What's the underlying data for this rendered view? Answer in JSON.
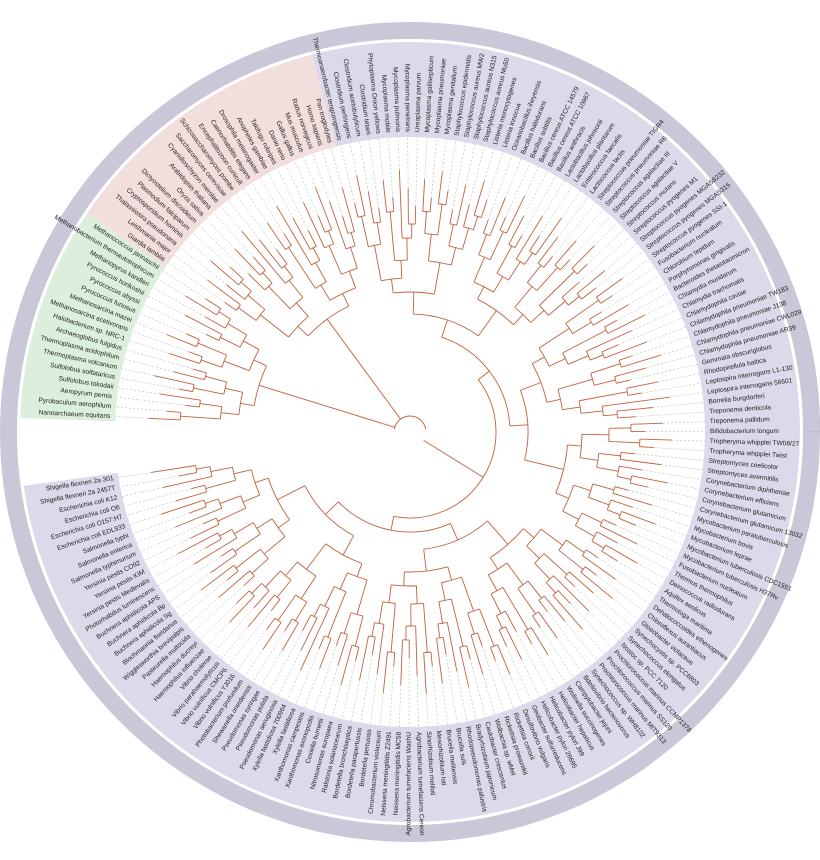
{
  "leaves": {
    "archaea": [
      "Nanoarchaeum equitans",
      "Pyrobaculum aerophilum",
      "Aeropyrum pernix",
      "Sulfolobus tokodaii",
      "Sulfolobus solfataricus",
      "Thermoplasma volcanium",
      "Thermoplasma acidophilum",
      "Archaeoglobus fulgidus",
      "Halobacterium sp. NRC-1",
      "Methanosarcina acetivorans",
      "Methanosarcina mazei",
      "Pyrococcus furiosus",
      "Pyrococcus abyssi",
      "Pyrococcus horikoshii",
      "Methanopyrus kandleri",
      "Methanobacterium thermautotrophicum",
      "Methanococcus jannaschii"
    ],
    "eukaryota": [
      "Giardia lamblia",
      "Leishmania major",
      "Thalassiosira pseudonana",
      "Cryptosporidium hominis",
      "Plasmodium falciparum",
      "Dictyostelium discoideum",
      "Oryza sativa",
      "Arabidopsis thaliana",
      "Cyanidioschyzon merolae",
      "Saccharomyces cerevisiae",
      "Schizosaccharomyces pombe",
      "Encephalitozoon cuniculi",
      "Caenorhabditis elegans",
      "Drosophila melanogaster",
      "Anopheles gambiae",
      "Takifugu rubripes",
      "Danio rerio",
      "Gallus gallus",
      "Mus musculus",
      "Rattus norvegicus",
      "Homo sapiens",
      "Pan troglodytes"
    ],
    "bacteria": [
      "Thermoanaerobacter tengcongensis",
      "Clostridium perfringens",
      "Clostridium acetobutylicum",
      "Clostridium tetani",
      "Phytoplasma Onion yellows",
      "Mycoplasma mobile",
      "Mycoplasma pulmonis",
      "Mycoplasma penetrans",
      "Ureaplasma parvum",
      "Mycoplasma gallisepticum",
      "Mycoplasma pneumoniae",
      "Mycoplasma genitalium",
      "Staphylococcus epidermidis",
      "Staphylococcus aureus MW2",
      "Staphylococcus aureus N315",
      "Staphylococcus aureus Mu50",
      "Listeria monocytogenes",
      "Listeria innocua",
      "Oceanobacillus iheyensis",
      "Bacillus halodurans",
      "Bacillus subtilis",
      "Bacillus cereus ATCC 14579",
      "Bacillus cereus ATCC 10987",
      "Bacillus anthracis",
      "Lactobacillus johnsonii",
      "Lactobacillus plantarum",
      "Enterococcus faecalis",
      "Lactococcus lactis",
      "Streptococcus pneumoniae TIGR4",
      "Streptococcus pneumoniae R6",
      "Streptococcus agalactiae III",
      "Streptococcus agalactiae V",
      "Streptococcus mutans",
      "Streptococcus pyogenes M1",
      "Streptococcus pyogenes MGAS8232",
      "Streptococcus pyogenes MGAS315",
      "Streptococcus pyogenes SSI-1",
      "Fusobacterium nucleatum",
      "Chlorobium tepidum",
      "Porphyromonas gingivalis",
      "Bacteroides thetaiotaomicron",
      "Chlamydia muridarum",
      "Chlamydia trachomatis",
      "Chlamydophila caviae",
      "Chlamydophila pneumoniae TW183",
      "Chlamydophila pneumoniae J138",
      "Chlamydophila pneumoniae CWL029",
      "Chlamydophila pneumoniae AR39",
      "Gemmata obscuriglobus",
      "Rhodopirellula baltica",
      "Leptospira interrogans L1-130",
      "Leptospira interrogans 56601",
      "Borrelia burgdorferi",
      "Treponema denticola",
      "Treponema pallidum",
      "Bifidobacterium longum",
      "Tropheryma whipplei TW08/27",
      "Tropheryma whipplei Twist",
      "Streptomyces coelicolor",
      "Streptomyces avermitilis",
      "Corynebacterium diphtheriae",
      "Corynebacterium efficiens",
      "Corynebacterium glutamicum",
      "Corynebacterium glutamicum 13032",
      "Mycobacterium paratuberculosis",
      "Mycobacterium bovis",
      "Mycobacterium leprae",
      "Mycobacterium tuberculosis CDC1551",
      "Mycobacterium tuberculosis H37Rv",
      "Fusobacterium nucleatum",
      "Thermus thermophilus",
      "Deinococcus radiodurans",
      "Aquifex aeolicus",
      "Thermotoga maritima",
      "Dehalococcoides ethenogenes",
      "Chloroflexus aurantiacus",
      "Gloeobacter violaceus",
      "Synechocystis sp. PCC6803",
      "Synechococcus elongatus",
      "Nostoc sp. PCC 7120",
      "Prochlorococcus marinus CCMP1378",
      "Prochlorococcus marinus SS120",
      "Prochlorococcus marinus MIT9313",
      "Synechococcus sp. WH8102",
      "Bdellovibrio bacteriovorus",
      "Campylobacter jejuni",
      "Wolinella succinogenes",
      "Helicobacter hepaticus",
      "Helicobacter pylori J99",
      "Helicobacter pylori 26695",
      "Geobacter sulfurreducens",
      "Desulfovibrio vulgaris",
      "Rickettsia conorii",
      "Rickettsia prowazekii",
      "Wolbachia sp. wMel",
      "Caulobacter crescentus",
      "Bradyrhizobium japonicum",
      "Rhodopseudomonas palustris",
      "Brucella suis",
      "Brucella melitensis",
      "Mesorhizobium loti",
      "Sinorhizobium meliloti",
      "Agrobacterium tumefaciens Cereon",
      "Agrobacterium tumefaciens WashU",
      "Neisseria meningitidis MC58",
      "Neisseria meningitidis Z2491",
      "Chromobacterium violaceum",
      "Bordetella pertussis",
      "Bordetella parapertussis",
      "Bordetella bronchiseptica",
      "Ralstonia solanacearum",
      "Nitrosomonas europaea",
      "Coxiella burnetii",
      "Xanthomonas axonopodis",
      "Xanthomonas campestris",
      "Xylella fastidiosa",
      "Xylella fastidiosa 700964",
      "Pseudomonas aeruginosa",
      "Pseudomonas putida",
      "Pseudomonas syringae",
      "Shewanella oneidensis",
      "Photobacterium profundum",
      "Vibrio vulnificus YJ016",
      "Vibrio vulnificus CMCP6",
      "Vibrio parahaemolyticus",
      "Vibrio cholerae",
      "Haemophilus influenzae",
      "Haemophilus ducreyi",
      "Pasteurella multocida",
      "Wigglesworthia brevipalpis",
      "Blochmannia floridanus",
      "Buchnera aphidicola Sg",
      "Buchnera aphidicola Bp",
      "Buchnera aphidicola APS",
      "Photorhabdus luminescens",
      "Yersinia pestis Medievalis",
      "Yersinia pestis KIM",
      "Yersinia pestis CO92",
      "Salmonella typhimurium",
      "Salmonella enterica",
      "Salmonella typhi",
      "Escherichia coli EDL933",
      "Escherichia coli O157:H7",
      "Escherichia coli O6",
      "Escherichia coli K12",
      "Shigella flexneri 2a 2457T",
      "Shigella flexneri 2a 301"
    ]
  }
}
